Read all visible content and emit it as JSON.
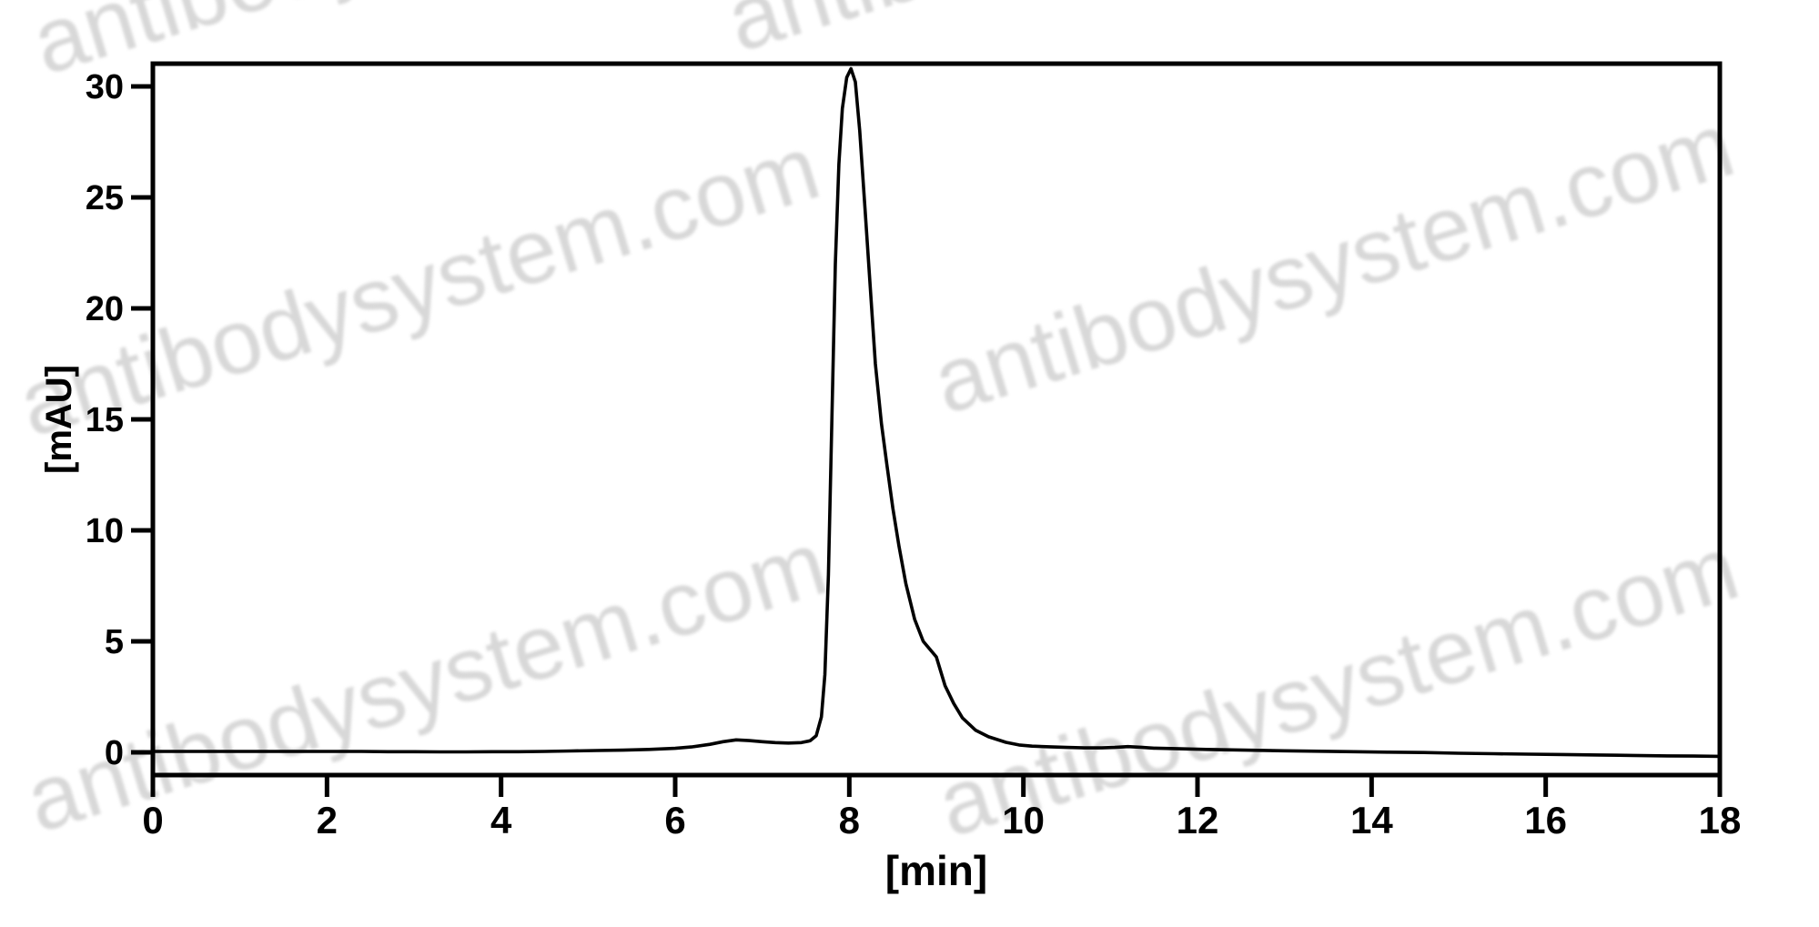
{
  "watermark": {
    "text": "antibodysystem.com",
    "color": "#d8d8d8"
  },
  "chart_data": {
    "type": "line",
    "title": "",
    "xlabel": "[min]",
    "ylabel": "[mAU]",
    "xlim": [
      0,
      18
    ],
    "ylim": [
      -1.02,
      31.02
    ],
    "xticks": [
      0,
      2,
      4,
      6,
      8,
      10,
      12,
      14,
      16,
      18
    ],
    "yticks": [
      0,
      5,
      10,
      15,
      20,
      25,
      30
    ],
    "grid": false,
    "legend": "none",
    "line_color": "#000000",
    "background_color": "#ffffff",
    "peaks": [
      {
        "retention_min": 6.7,
        "height_mAU": 0.56,
        "note": "minor pre-peak"
      },
      {
        "retention_min": 8.0,
        "height_mAU": 30.8,
        "note": "main peak"
      },
      {
        "retention_min": 11.2,
        "height_mAU": 0.26,
        "note": "minor bump"
      }
    ],
    "series": [
      {
        "name": "absorbance-trace",
        "points": [
          [
            0.0,
            0.04
          ],
          [
            0.3,
            0.04
          ],
          [
            0.6,
            0.04
          ],
          [
            0.9,
            0.04
          ],
          [
            1.2,
            0.04
          ],
          [
            1.5,
            0.04
          ],
          [
            1.8,
            0.04
          ],
          [
            2.1,
            0.04
          ],
          [
            2.4,
            0.04
          ],
          [
            2.7,
            0.03
          ],
          [
            3.0,
            0.03
          ],
          [
            3.3,
            0.02
          ],
          [
            3.6,
            0.02
          ],
          [
            3.9,
            0.03
          ],
          [
            4.2,
            0.03
          ],
          [
            4.5,
            0.04
          ],
          [
            4.8,
            0.06
          ],
          [
            5.1,
            0.08
          ],
          [
            5.4,
            0.1
          ],
          [
            5.7,
            0.13
          ],
          [
            6.0,
            0.18
          ],
          [
            6.2,
            0.25
          ],
          [
            6.4,
            0.36
          ],
          [
            6.55,
            0.48
          ],
          [
            6.7,
            0.56
          ],
          [
            6.85,
            0.53
          ],
          [
            7.0,
            0.48
          ],
          [
            7.15,
            0.44
          ],
          [
            7.3,
            0.42
          ],
          [
            7.45,
            0.44
          ],
          [
            7.55,
            0.52
          ],
          [
            7.62,
            0.75
          ],
          [
            7.68,
            1.6
          ],
          [
            7.72,
            3.5
          ],
          [
            7.76,
            8.0
          ],
          [
            7.8,
            15.0
          ],
          [
            7.84,
            22.0
          ],
          [
            7.88,
            26.5
          ],
          [
            7.92,
            29.0
          ],
          [
            7.97,
            30.4
          ],
          [
            8.02,
            30.8
          ],
          [
            8.07,
            30.2
          ],
          [
            8.12,
            28.0
          ],
          [
            8.18,
            24.5
          ],
          [
            8.24,
            21.0
          ],
          [
            8.3,
            17.5
          ],
          [
            8.37,
            14.8
          ],
          [
            8.43,
            13.0
          ],
          [
            8.5,
            11.0
          ],
          [
            8.57,
            9.3
          ],
          [
            8.65,
            7.6
          ],
          [
            8.75,
            6.0
          ],
          [
            8.85,
            5.0
          ],
          [
            9.0,
            4.3
          ],
          [
            9.1,
            3.0
          ],
          [
            9.2,
            2.2
          ],
          [
            9.3,
            1.55
          ],
          [
            9.45,
            1.0
          ],
          [
            9.6,
            0.7
          ],
          [
            9.8,
            0.45
          ],
          [
            9.95,
            0.33
          ],
          [
            10.1,
            0.28
          ],
          [
            10.3,
            0.25
          ],
          [
            10.5,
            0.22
          ],
          [
            10.7,
            0.2
          ],
          [
            10.9,
            0.2
          ],
          [
            11.05,
            0.22
          ],
          [
            11.2,
            0.26
          ],
          [
            11.35,
            0.23
          ],
          [
            11.5,
            0.19
          ],
          [
            11.8,
            0.16
          ],
          [
            12.1,
            0.13
          ],
          [
            12.4,
            0.11
          ],
          [
            12.7,
            0.09
          ],
          [
            13.0,
            0.07
          ],
          [
            13.4,
            0.05
          ],
          [
            13.8,
            0.03
          ],
          [
            14.2,
            0.01
          ],
          [
            14.6,
            -0.01
          ],
          [
            15.0,
            -0.04
          ],
          [
            15.4,
            -0.06
          ],
          [
            15.8,
            -0.08
          ],
          [
            16.2,
            -0.1
          ],
          [
            16.6,
            -0.12
          ],
          [
            17.0,
            -0.14
          ],
          [
            17.4,
            -0.16
          ],
          [
            17.7,
            -0.17
          ],
          [
            18.0,
            -0.18
          ]
        ]
      }
    ]
  }
}
